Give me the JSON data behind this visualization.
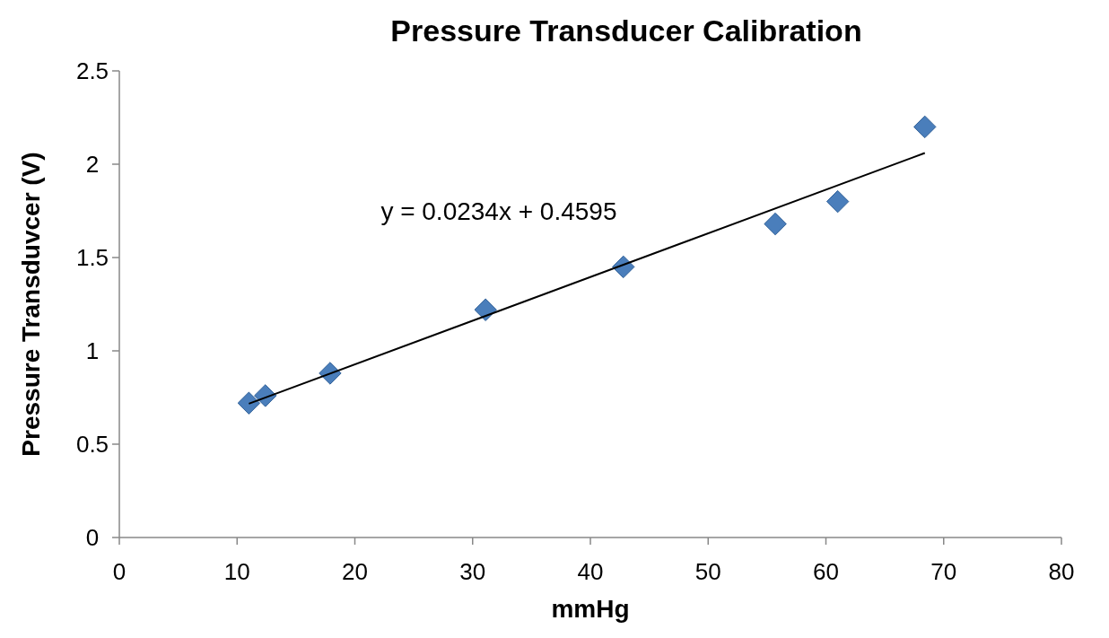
{
  "chart_data": {
    "type": "scatter",
    "title": "Pressure Transducer Calibration",
    "xlabel": "mmHg",
    "ylabel": "Pressure Transduvcer (V)",
    "annotations": [
      "y = 0.0234x + 0.4595"
    ],
    "xlim": [
      0,
      80
    ],
    "xticks": [
      0,
      10,
      20,
      30,
      40,
      50,
      60,
      70,
      80
    ],
    "ylim": [
      0,
      2.5
    ],
    "yticks": [
      0,
      0.5,
      1,
      1.5,
      2,
      2.5
    ],
    "grid": false,
    "series": [
      {
        "type": "scatter",
        "marker": "diamond",
        "color": "#4a7ebb",
        "x": [
          11,
          12.4,
          17.9,
          31.1,
          42.8,
          55.7,
          61,
          68.4
        ],
        "values": [
          0.72,
          0.76,
          0.88,
          1.22,
          1.45,
          1.68,
          1.8,
          2.2
        ]
      },
      {
        "type": "line",
        "color": "#000000",
        "line_style": "solid",
        "x": [
          11,
          68.4
        ],
        "values": [
          0.717,
          2.06
        ]
      }
    ]
  }
}
